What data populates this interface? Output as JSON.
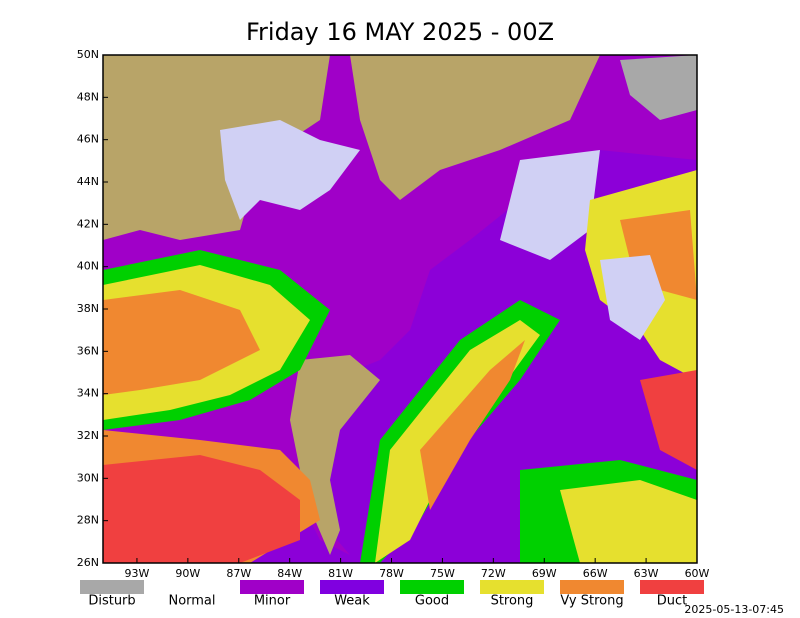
{
  "title": "Friday 16 MAY 2025 - 00Z",
  "lat_labels": [
    "50N",
    "48N",
    "46N",
    "44N",
    "42N",
    "40N",
    "38N",
    "36N",
    "34N",
    "32N",
    "30N",
    "28N",
    "26N"
  ],
  "lon_labels": [
    "93W",
    "90W",
    "87W",
    "84W",
    "81W",
    "78W",
    "75W",
    "72W",
    "69W",
    "66W",
    "63W",
    "60W"
  ],
  "legend": [
    {
      "name": "Disturb",
      "color": "#a8a8a8"
    },
    {
      "name": "Normal",
      "color": "#ffffff"
    },
    {
      "name": "Minor",
      "color": "#a000c8"
    },
    {
      "name": "Weak",
      "color": "#8000e0"
    },
    {
      "name": "Good",
      "color": "#00d000"
    },
    {
      "name": "Strong",
      "color": "#e6e02e"
    },
    {
      "name": "Vy Strong",
      "color": "#f08830"
    },
    {
      "name": "Duct",
      "color": "#f04040"
    }
  ],
  "timestamp": "2025-05-13-07:45"
}
